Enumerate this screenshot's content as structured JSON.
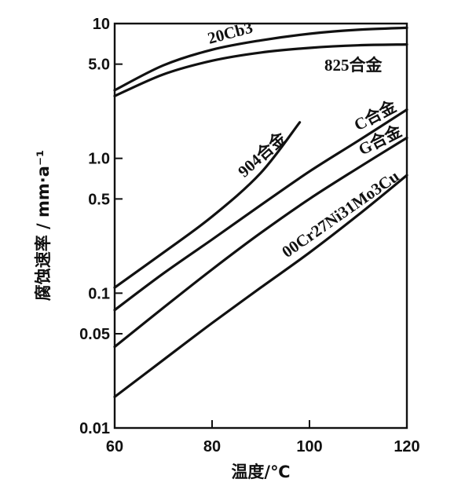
{
  "chart_data": {
    "type": "line",
    "title": "",
    "xlabel": "温度/℃",
    "ylabel": "腐蚀速率 / mm·a⁻¹",
    "xlim": [
      60,
      120
    ],
    "ylim": [
      0.01,
      10
    ],
    "yscale": "log",
    "grid": false,
    "xticks": [
      {
        "value": 60,
        "label": "60"
      },
      {
        "value": 80,
        "label": "80"
      },
      {
        "value": 100,
        "label": "100"
      },
      {
        "value": 120,
        "label": "120"
      }
    ],
    "yticks": [
      {
        "value": 10,
        "label": "10"
      },
      {
        "value": 5,
        "label": "5.0"
      },
      {
        "value": 1,
        "label": "1.0"
      },
      {
        "value": 0.5,
        "label": "0.5"
      },
      {
        "value": 0.1,
        "label": "0.1"
      },
      {
        "value": 0.05,
        "label": "0.05"
      },
      {
        "value": 0.01,
        "label": "0.01"
      }
    ],
    "series": [
      {
        "name": "20Cb3",
        "x": [
          60,
          70,
          80,
          90,
          100,
          110,
          120
        ],
        "y": [
          3.2,
          4.9,
          6.4,
          7.5,
          8.4,
          9.0,
          9.3
        ]
      },
      {
        "name": "825合金",
        "x": [
          60,
          70,
          80,
          90,
          100,
          110,
          120
        ],
        "y": [
          2.9,
          4.2,
          5.3,
          6.1,
          6.6,
          6.9,
          7.0
        ]
      },
      {
        "name": "904合金",
        "x": [
          60,
          70,
          80,
          90,
          98
        ],
        "y": [
          0.11,
          0.2,
          0.37,
          0.78,
          1.85
        ]
      },
      {
        "name": "C合金",
        "x": [
          60,
          70,
          80,
          90,
          100,
          110,
          120
        ],
        "y": [
          0.075,
          0.14,
          0.25,
          0.45,
          0.8,
          1.35,
          2.3
        ]
      },
      {
        "name": "G合金",
        "x": [
          60,
          70,
          80,
          90,
          100,
          110,
          120
        ],
        "y": [
          0.04,
          0.078,
          0.15,
          0.28,
          0.5,
          0.85,
          1.42
        ]
      },
      {
        "name": "00Cr27Ni31Mo3Cu",
        "x": [
          60,
          70,
          80,
          90,
          100,
          110,
          120
        ],
        "y": [
          0.017,
          0.032,
          0.06,
          0.11,
          0.2,
          0.38,
          0.75
        ]
      }
    ]
  }
}
